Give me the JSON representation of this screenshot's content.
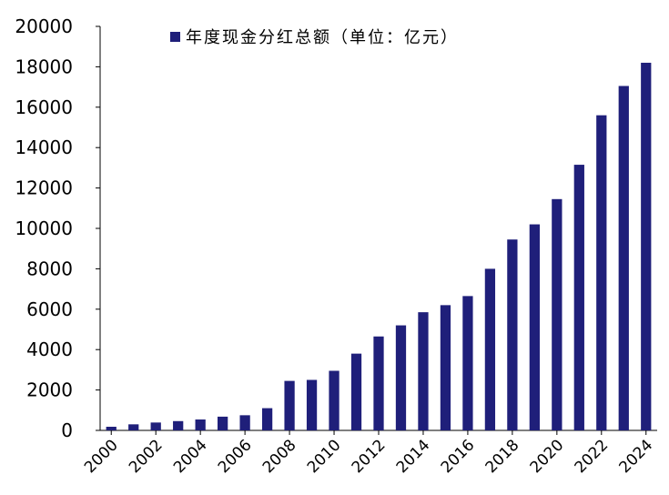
{
  "chart_data": {
    "type": "bar",
    "legend": "年度现金分红总额（单位：亿元）",
    "legend_position": "top",
    "bar_color": "#1f1f7a",
    "categories": [
      "2000",
      "2001",
      "2002",
      "2003",
      "2004",
      "2005",
      "2006",
      "2007",
      "2008",
      "2009",
      "2010",
      "2011",
      "2012",
      "2013",
      "2014",
      "2015",
      "2016",
      "2017",
      "2018",
      "2019",
      "2020",
      "2021",
      "2022",
      "2023",
      "2024"
    ],
    "x_tick_labels": [
      "2000",
      "2002",
      "2004",
      "2006",
      "2008",
      "2010",
      "2012",
      "2014",
      "2016",
      "2018",
      "2020",
      "2022",
      "2024"
    ],
    "values": [
      180,
      300,
      390,
      460,
      540,
      680,
      750,
      1100,
      2450,
      2500,
      2950,
      3800,
      4650,
      5200,
      5850,
      6200,
      6650,
      8000,
      9450,
      10200,
      11450,
      13150,
      15600,
      17050,
      18200
    ],
    "y_ticks": [
      "0",
      "2000",
      "4000",
      "6000",
      "8000",
      "10000",
      "12000",
      "14000",
      "16000",
      "18000",
      "20000"
    ],
    "ylim": [
      0,
      20000
    ],
    "grid": false
  }
}
